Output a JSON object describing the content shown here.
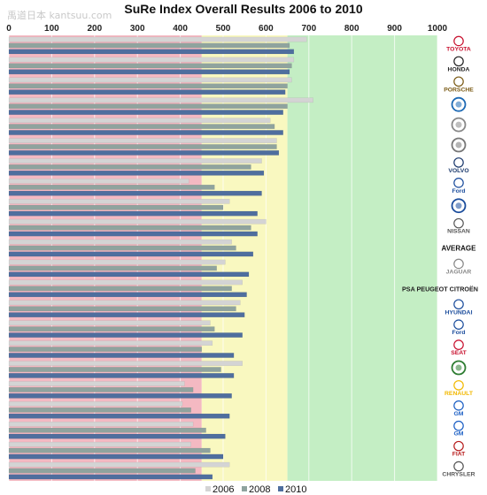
{
  "watermark": "禹道日本 kantsuu.com",
  "chart_data": {
    "type": "bar",
    "title": "SuRe Index Overall Results 2006 to 2010",
    "xlim": [
      0,
      1000
    ],
    "x_ticks": [
      0,
      100,
      200,
      300,
      400,
      500,
      600,
      700,
      800,
      900,
      1000
    ],
    "grid": true,
    "legend_position": "bottom",
    "bands": [
      {
        "from": 0,
        "to": 450,
        "color": "#f4b9c2"
      },
      {
        "from": 450,
        "to": 650,
        "color": "#f9f8c0"
      },
      {
        "from": 650,
        "to": 1000,
        "color": "#c4eec4"
      }
    ],
    "categories": [
      "Toyota",
      "Honda",
      "Porsche",
      "BMW",
      "Audi",
      "Mercedes-Benz",
      "Volvo",
      "Ford (US)",
      "Volkswagen",
      "Nissan",
      "AVERAGE",
      "Jaguar",
      "PSA PEUGEOT CITROËN",
      "Hyundai",
      "Ford (EU)",
      "Seat",
      "Skoda",
      "Renault",
      "GM (US)",
      "GM (EU)",
      "Fiat",
      "Chrysler"
    ],
    "category_labels": [
      "TOYOTA",
      "HONDA",
      "PORSCHE",
      "",
      "",
      "",
      "VOLVO",
      "Ford",
      "",
      "NISSAN",
      "AVERAGE",
      "JAGUAR",
      "PSA PEUGEOT CITROËN",
      "HYUNDAI",
      "Ford",
      "SEAT",
      "",
      "RENAULT",
      "GM",
      "GM",
      "FIAT",
      "CHRYSLER"
    ],
    "category_label_colors": [
      "#c8102e",
      "#222222",
      "#7a5a14",
      "#1c69b4",
      "#888888",
      "#777777",
      "#1d3b6e",
      "#1a4c9c",
      "#1a4c9c",
      "#555555",
      "#111111",
      "#888888",
      "#222222",
      "#1a4c9c",
      "#1a4c9c",
      "#c8102e",
      "#2e7d32",
      "#f2b800",
      "#1a5ec4",
      "#1a5ec4",
      "#b71c1c",
      "#555555"
    ],
    "series": [
      {
        "name": "2006",
        "color": "#d4d4d4",
        "values": [
          695,
          665,
          660,
          710,
          610,
          625,
          590,
          420,
          515,
          600,
          520,
          505,
          545,
          540,
          470,
          475,
          545,
          410,
          405,
          430,
          425,
          515
        ]
      },
      {
        "name": "2008",
        "color": "#8fa39e",
        "values": [
          655,
          660,
          650,
          650,
          620,
          625,
          565,
          480,
          500,
          565,
          530,
          485,
          520,
          530,
          480,
          450,
          495,
          430,
          425,
          460,
          470,
          435
        ]
      },
      {
        "name": "2010",
        "color": "#4f6e9e",
        "values": [
          665,
          655,
          645,
          640,
          640,
          630,
          595,
          590,
          580,
          580,
          570,
          560,
          555,
          550,
          545,
          525,
          525,
          520,
          515,
          505,
          500,
          475
        ]
      }
    ]
  }
}
